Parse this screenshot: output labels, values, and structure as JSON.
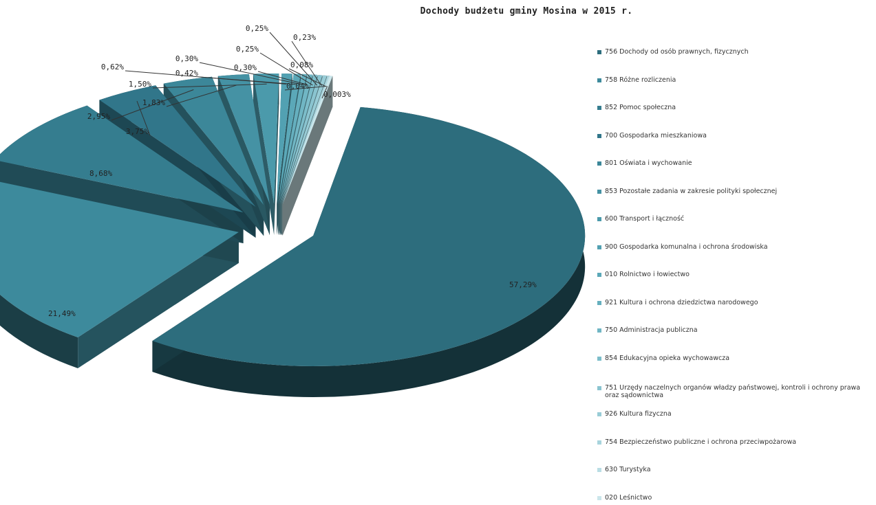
{
  "chart_data": {
    "type": "pie",
    "title": "Dochody budżetu gminy Mosina w 2015 r.",
    "legend_position": "right",
    "slices": [
      {
        "name": "756 Dochody od osób prawnych, fizycznych",
        "value": 57.29,
        "label": "57,29%",
        "color": "#2d6d7d"
      },
      {
        "name": "758 Różne rozliczenia",
        "value": 21.49,
        "label": "21,49%",
        "color": "#3d8a9c"
      },
      {
        "name": "852 Pomoc społeczna",
        "value": 8.68,
        "label": "8,68%",
        "color": "#357d8f"
      },
      {
        "name": "700 Gospodarka mieszkaniowa",
        "value": 3.75,
        "label": "3,75%",
        "color": "#31768a"
      },
      {
        "name": "801 Oświata i wychowanie",
        "value": 2.95,
        "label": "2,95%",
        "color": "#3c8799"
      },
      {
        "name": "853 Pozostałe zadania w zakresie polityki społecznej",
        "value": 1.83,
        "label": "1,83%",
        "color": "#4592a4"
      },
      {
        "name": "600 Transport i łączność",
        "value": 1.5,
        "label": "1,50%",
        "color": "#4b9aab"
      },
      {
        "name": "900 Gospodarka komunalna i ochrona środowiska",
        "value": 0.62,
        "label": "0,62%",
        "color": "#52a1b2"
      },
      {
        "name": "010 Rolnictwo i łowiectwo",
        "value": 0.42,
        "label": "0,42%",
        "color": "#5ba8b8"
      },
      {
        "name": "921 Kultura i ochrona dziedzictwa narodowego",
        "value": 0.3,
        "label": "0,30%",
        "color": "#65afbe"
      },
      {
        "name": "750 Administracja publiczna",
        "value": 0.3,
        "label": "0,30%",
        "color": "#70b6c4"
      },
      {
        "name": "854 Edukacyjna opieka wychowawcza",
        "value": 0.25,
        "label": "0,25%",
        "color": "#7cbdca"
      },
      {
        "name": "751 Urzędy naczelnych organów władzy państwowej, kontroli i ochrony prawa oraz sądownictwa",
        "value": 0.25,
        "label": "0,25%",
        "color": "#8ac4d0"
      },
      {
        "name": "926 Kultura fizyczna",
        "value": 0.23,
        "label": "0,23%",
        "color": "#98ccd6"
      },
      {
        "name": "754 Bezpieczeństwo publiczne i ochrona przeciwpożarowa",
        "value": 0.08,
        "label": "0,08%",
        "color": "#a8d4dd"
      },
      {
        "name": "630 Turystyka",
        "value": 0.04,
        "label": "0,04%",
        "color": "#b9dde4"
      },
      {
        "name": "020 Leśnictwo",
        "value": 0.003,
        "label": "0,003%",
        "color": "#cbe6eb"
      }
    ]
  }
}
